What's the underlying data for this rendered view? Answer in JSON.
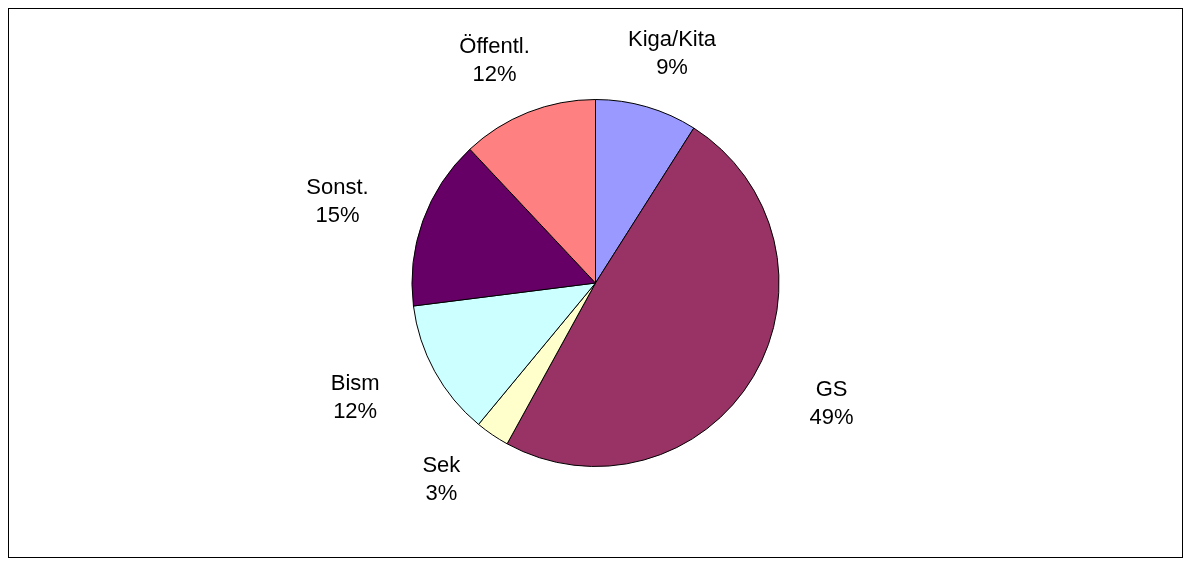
{
  "chart_data": {
    "type": "pie",
    "categories": [
      "Kiga/Kita",
      "GS",
      "Sek",
      "Bism",
      "Sonst.",
      "Öffentl."
    ],
    "values": [
      9,
      49,
      3,
      12,
      15,
      12
    ],
    "colors": [
      "#9999ff",
      "#993366",
      "#ffffcc",
      "#ccffff",
      "#660066",
      "#ff8080"
    ],
    "value_labels": [
      "9%",
      "49%",
      "3%",
      "12%",
      "15%",
      "12%"
    ],
    "legend": false
  }
}
